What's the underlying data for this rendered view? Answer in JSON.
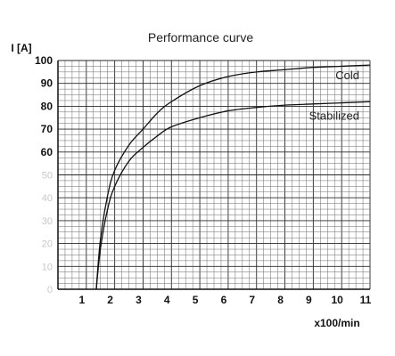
{
  "chart_data": {
    "type": "line",
    "title": "Performance curve",
    "ylabel": "I [A]",
    "xlabel": "x100/min",
    "xlim": [
      0,
      11
    ],
    "ylim": [
      0,
      100
    ],
    "x_ticks": [
      "1",
      "2",
      "3",
      "4",
      "5",
      "6",
      "7",
      "8",
      "9",
      "10",
      "11"
    ],
    "y_ticks": [
      "0",
      "10",
      "20",
      "30",
      "40",
      "50",
      "60",
      "70",
      "80",
      "90",
      "100"
    ],
    "grid": true,
    "series": [
      {
        "name": "Cold",
        "x": [
          1.35,
          1.5,
          1.75,
          2,
          2.5,
          3,
          3.5,
          4,
          5,
          6,
          7,
          8,
          9,
          10,
          11
        ],
        "y": [
          0,
          22,
          41,
          52,
          63,
          70,
          77,
          82,
          89,
          93,
          95,
          96,
          97,
          97.5,
          98
        ]
      },
      {
        "name": "Stabilized",
        "x": [
          1.35,
          1.5,
          1.75,
          2,
          2.5,
          3,
          3.5,
          4,
          5,
          6,
          7,
          8,
          9,
          10,
          11
        ],
        "y": [
          0,
          18,
          35,
          45,
          56,
          62,
          67,
          71,
          75,
          78,
          79.5,
          80.5,
          81,
          81.5,
          82
        ]
      }
    ]
  }
}
